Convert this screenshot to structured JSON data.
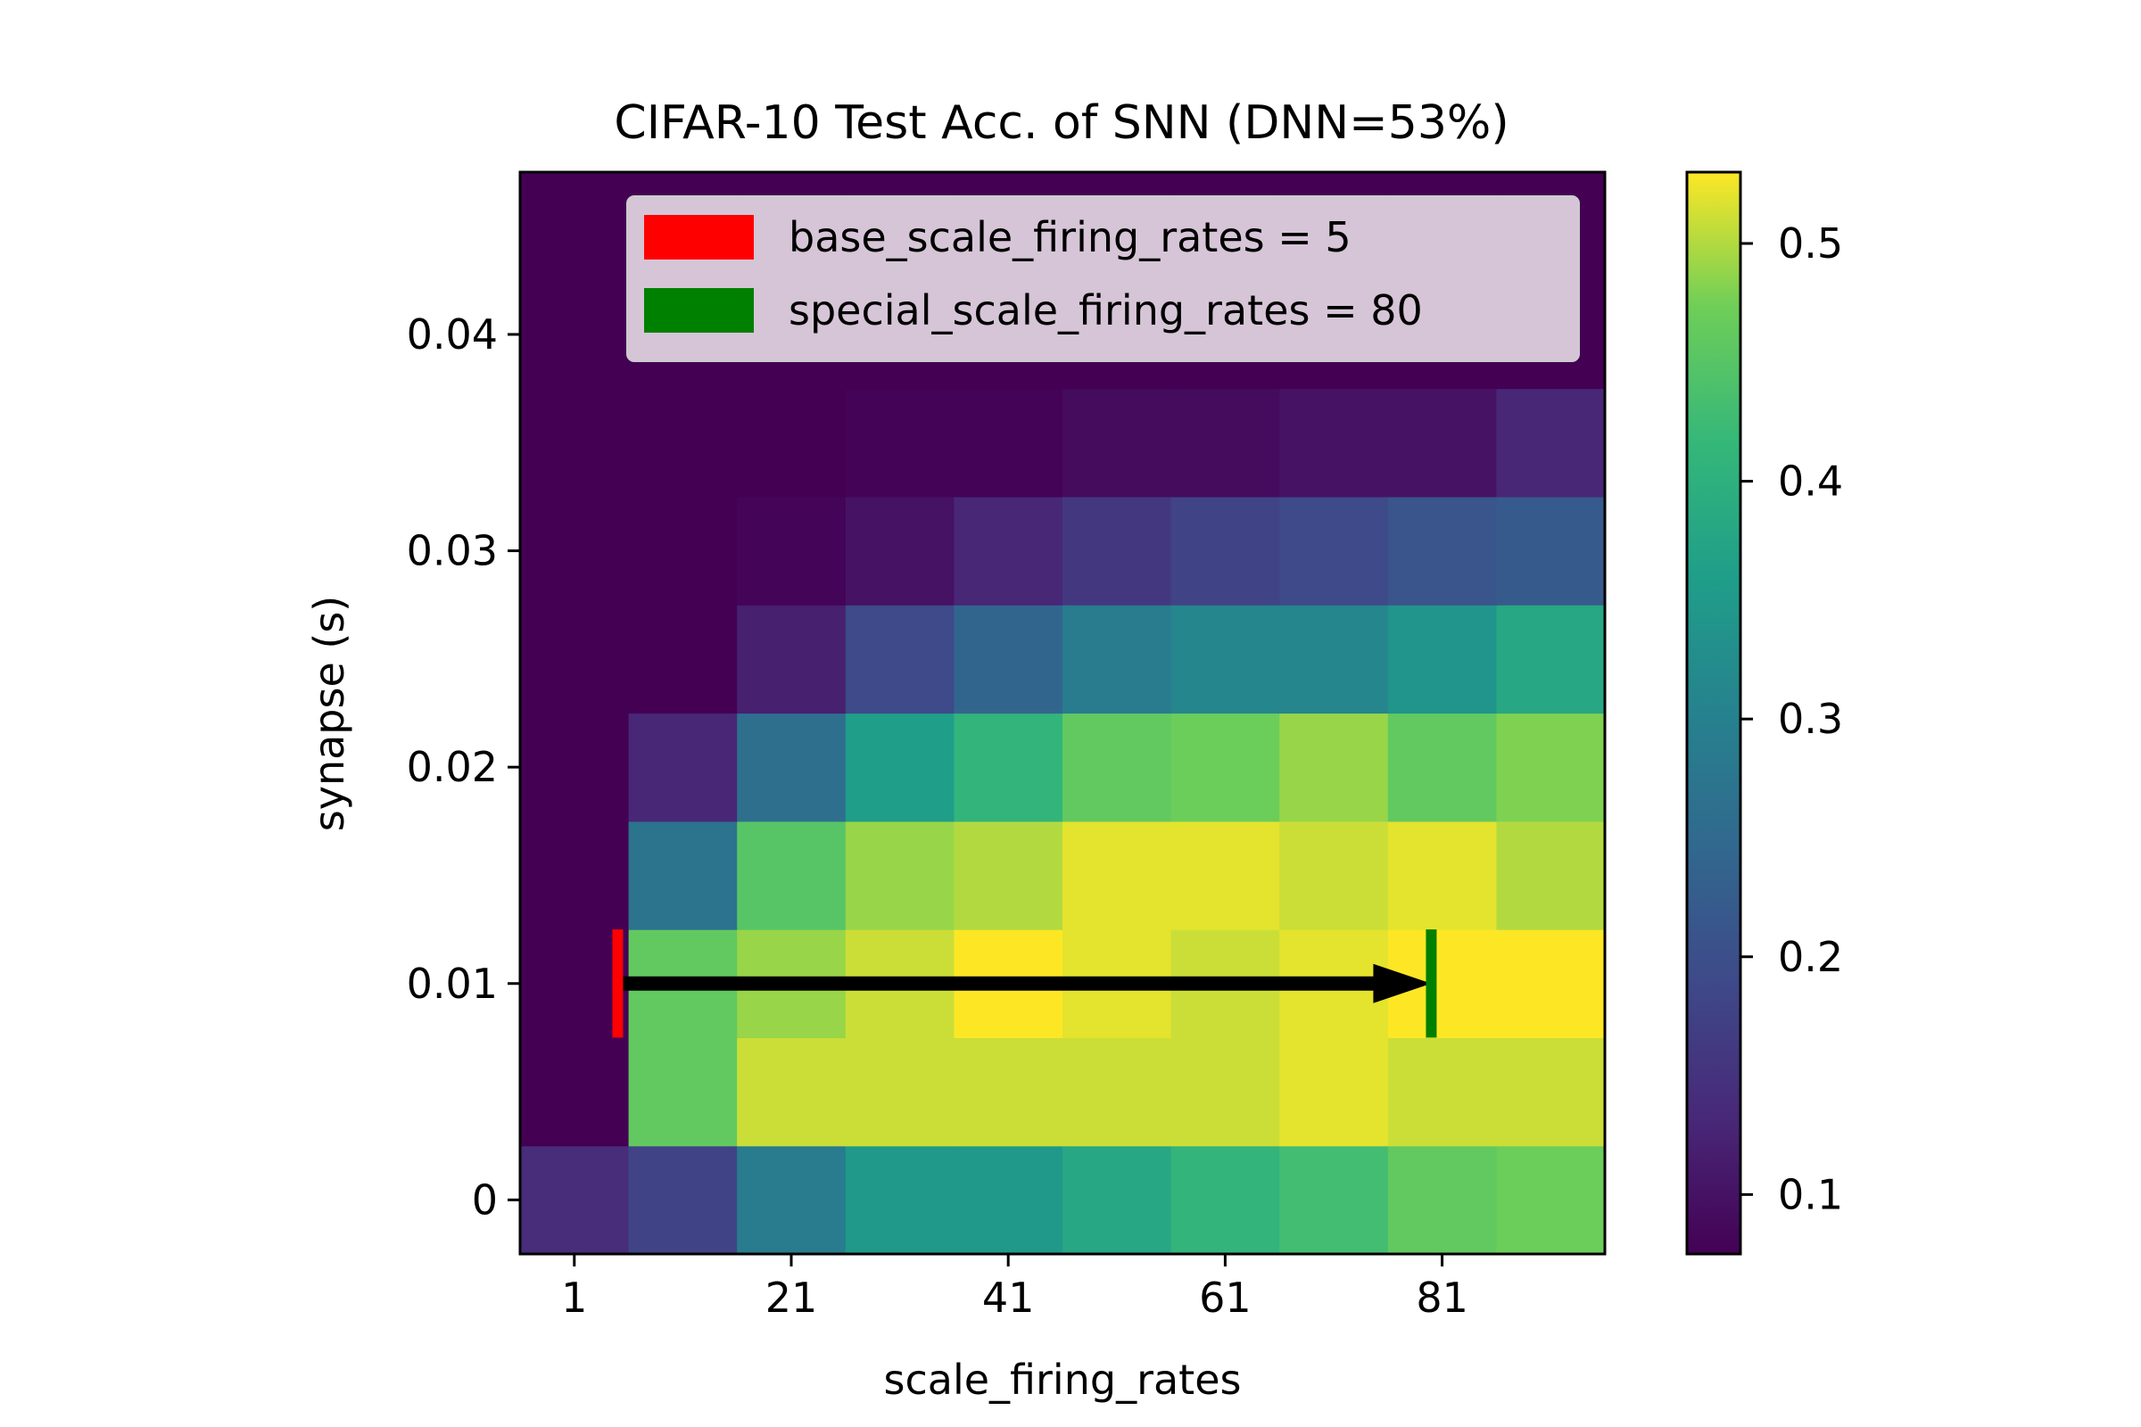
{
  "chart_data": {
    "type": "heatmap",
    "title": "CIFAR-10 Test Acc. of SNN (DNN=53%)",
    "xlabel": "scale_firing_rates",
    "ylabel": "synapse (s)",
    "x": [
      1,
      11,
      21,
      31,
      41,
      51,
      61,
      71,
      81,
      91
    ],
    "y": [
      0.0,
      0.005,
      0.01,
      0.015,
      0.02,
      0.025,
      0.03,
      0.035,
      0.04,
      0.045
    ],
    "x_tick_labels": [
      "1",
      "21",
      "41",
      "61",
      "81"
    ],
    "y_tick_labels": [
      "0",
      "0.01",
      "0.02",
      "0.03",
      "0.04"
    ],
    "z": [
      [
        0.14,
        0.18,
        0.29,
        0.35,
        0.35,
        0.38,
        0.41,
        0.43,
        0.46,
        0.47
      ],
      [
        0.075,
        0.46,
        0.51,
        0.51,
        0.51,
        0.51,
        0.51,
        0.52,
        0.51,
        0.51
      ],
      [
        0.075,
        0.46,
        0.49,
        0.51,
        0.53,
        0.52,
        0.51,
        0.52,
        0.53,
        0.53
      ],
      [
        0.075,
        0.27,
        0.45,
        0.49,
        0.5,
        0.52,
        0.52,
        0.51,
        0.52,
        0.5
      ],
      [
        0.075,
        0.13,
        0.26,
        0.36,
        0.41,
        0.46,
        0.47,
        0.49,
        0.46,
        0.48
      ],
      [
        0.075,
        0.075,
        0.12,
        0.19,
        0.24,
        0.29,
        0.31,
        0.31,
        0.34,
        0.38
      ],
      [
        0.075,
        0.075,
        0.08,
        0.1,
        0.13,
        0.16,
        0.18,
        0.19,
        0.21,
        0.22
      ],
      [
        0.075,
        0.075,
        0.075,
        0.078,
        0.078,
        0.09,
        0.09,
        0.1,
        0.1,
        0.13
      ],
      [
        0.075,
        0.075,
        0.075,
        0.075,
        0.075,
        0.075,
        0.075,
        0.075,
        0.075,
        0.075
      ],
      [
        0.075,
        0.075,
        0.075,
        0.075,
        0.075,
        0.075,
        0.075,
        0.075,
        0.075,
        0.075
      ]
    ],
    "colorbar": {
      "colormap": "viridis",
      "range": [
        0.075,
        0.53
      ],
      "ticks": [
        0.1,
        0.2,
        0.3,
        0.4,
        0.5
      ],
      "tick_labels": [
        "0.1",
        "0.2",
        "0.3",
        "0.4",
        "0.5"
      ]
    },
    "legend": {
      "placement": "upper center",
      "entries": [
        {
          "label": "base_scale_firing_rates = 5",
          "color": "#ff0000"
        },
        {
          "label": "special_scale_firing_rates = 80",
          "color": "#008000"
        }
      ]
    },
    "annotation": {
      "type": "arrow",
      "from": {
        "x": 5,
        "y": 0.01
      },
      "to": {
        "x": 80,
        "y": 0.01
      },
      "color": "#000000"
    },
    "markers": [
      {
        "x": 5,
        "y": 0.01,
        "color": "#ff0000"
      },
      {
        "x": 80,
        "y": 0.01,
        "color": "#008000"
      }
    ],
    "grid": false
  }
}
